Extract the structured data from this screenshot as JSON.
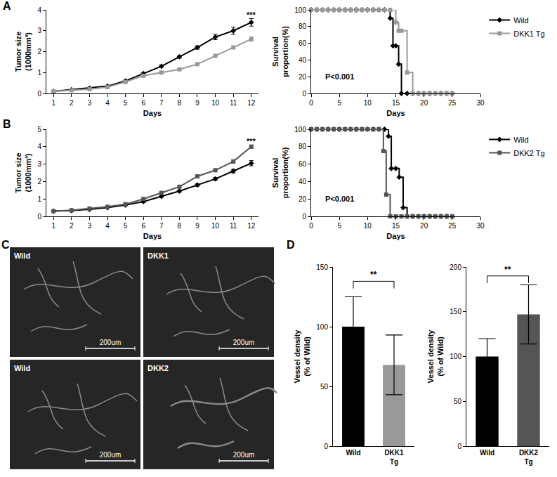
{
  "panel_labels": [
    "A",
    "B",
    "C",
    "D"
  ],
  "chart_data": [
    {
      "type": "line",
      "x_label": "Days",
      "y_label": "Tumor size\n(1000mm³)",
      "x": [
        1,
        2,
        3,
        4,
        5,
        6,
        7,
        8,
        9,
        10,
        11,
        12
      ],
      "xlim": [
        0.6,
        12.4
      ],
      "xticks": [
        1,
        2,
        3,
        4,
        5,
        6,
        7,
        8,
        9,
        10,
        11,
        12
      ],
      "ylim": [
        0,
        4
      ],
      "yticks": [
        0,
        1,
        2,
        3,
        4
      ],
      "series": [
        {
          "name": "Wild",
          "color": "#000000",
          "marker": "diamond",
          "values": [
            0.1,
            0.18,
            0.25,
            0.35,
            0.6,
            0.95,
            1.3,
            1.75,
            2.2,
            2.7,
            3.0,
            3.4
          ],
          "errors": [
            0.02,
            0.02,
            0.03,
            0.03,
            0.04,
            0.05,
            0.05,
            0.06,
            0.08,
            0.13,
            0.17,
            0.18
          ]
        },
        {
          "name": "DKK1 Tg",
          "color": "#999999",
          "marker": "square",
          "values": [
            0.1,
            0.15,
            0.2,
            0.3,
            0.55,
            0.85,
            1.0,
            1.15,
            1.4,
            1.8,
            2.2,
            2.6
          ],
          "errors": [
            0.02,
            0.02,
            0.02,
            0.03,
            0.03,
            0.04,
            0.04,
            0.04,
            0.05,
            0.05,
            0.05,
            0.1
          ]
        }
      ],
      "annotations": [
        {
          "text": "***",
          "x": 12,
          "y": 3.75
        }
      ]
    },
    {
      "type": "line",
      "x_label": "Days",
      "y_label": "Survival\nproportion(%)",
      "line_style": "step",
      "legend": "right",
      "xlim": [
        0,
        30
      ],
      "xticks": [
        0,
        5,
        10,
        15,
        20,
        25,
        30
      ],
      "ylim": [
        0,
        100
      ],
      "yticks": [
        0,
        20,
        40,
        60,
        80,
        100
      ],
      "series": [
        {
          "name": "Wild",
          "color": "#000000",
          "marker": "diamond",
          "x": [
            0,
            1,
            2,
            3,
            4,
            5,
            6,
            7,
            8,
            9,
            10,
            11,
            12,
            13,
            14,
            14.5,
            15,
            15.5,
            16,
            17,
            18,
            19,
            20,
            21,
            22,
            23,
            24,
            25
          ],
          "values": [
            100,
            100,
            100,
            100,
            100,
            100,
            100,
            100,
            100,
            100,
            100,
            100,
            100,
            100,
            90,
            57,
            57,
            35,
            0,
            0,
            0,
            0,
            0,
            0,
            0,
            0,
            0,
            0
          ]
        },
        {
          "name": "DKK1 Tg",
          "color": "#999999",
          "marker": "square",
          "x": [
            0,
            1,
            2,
            3,
            4,
            5,
            6,
            7,
            8,
            9,
            10,
            11,
            12,
            13,
            14,
            15,
            15.5,
            16,
            17,
            18,
            19,
            20,
            21,
            22,
            23,
            24,
            25
          ],
          "values": [
            100,
            100,
            100,
            100,
            100,
            100,
            100,
            100,
            100,
            100,
            100,
            100,
            100,
            100,
            100,
            85,
            75,
            75,
            25,
            0,
            0,
            0,
            0,
            0,
            0,
            0,
            0
          ]
        }
      ],
      "annotations": [
        {
          "text": "P<0.001",
          "x": 5,
          "y": 20
        }
      ]
    },
    {
      "type": "line",
      "x_label": "Days",
      "y_label": "Tumor size\n(1000mm³)",
      "x": [
        1,
        2,
        3,
        4,
        5,
        6,
        7,
        8,
        9,
        10,
        11,
        12
      ],
      "xlim": [
        0.6,
        12.4
      ],
      "xticks": [
        1,
        2,
        3,
        4,
        5,
        6,
        7,
        8,
        9,
        10,
        11,
        12
      ],
      "ylim": [
        0,
        5
      ],
      "yticks": [
        0,
        1,
        2,
        3,
        4,
        5
      ],
      "series": [
        {
          "name": "Wild",
          "color": "#000000",
          "marker": "diamond",
          "values": [
            0.3,
            0.33,
            0.4,
            0.5,
            0.65,
            0.85,
            1.15,
            1.45,
            1.8,
            2.15,
            2.6,
            3.05
          ],
          "errors": [
            0.02,
            0.02,
            0.03,
            0.03,
            0.04,
            0.04,
            0.05,
            0.06,
            0.07,
            0.08,
            0.1,
            0.15
          ]
        },
        {
          "name": "DKK2 Tg",
          "color": "#555555",
          "marker": "square",
          "values": [
            0.3,
            0.35,
            0.45,
            0.55,
            0.7,
            1.0,
            1.35,
            1.7,
            2.3,
            2.65,
            3.15,
            4.0
          ],
          "errors": [
            0.02,
            0.02,
            0.03,
            0.03,
            0.04,
            0.05,
            0.05,
            0.06,
            0.07,
            0.08,
            0.1,
            0.1
          ]
        }
      ],
      "annotations": [
        {
          "text": "***",
          "x": 12,
          "y": 4.3
        }
      ]
    },
    {
      "type": "line",
      "x_label": "Days",
      "y_label": "Survival\nproportion(%)",
      "line_style": "step",
      "legend": "right",
      "xlim": [
        0,
        30
      ],
      "xticks": [
        0,
        5,
        10,
        15,
        20,
        25,
        30
      ],
      "ylim": [
        0,
        100
      ],
      "yticks": [
        0,
        20,
        40,
        60,
        80,
        100
      ],
      "series": [
        {
          "name": "Wild",
          "color": "#000000",
          "marker": "diamond",
          "x": [
            0,
            1,
            2,
            3,
            4,
            5,
            6,
            7,
            8,
            9,
            10,
            11,
            12,
            13,
            13.7,
            14.2,
            15,
            15.6,
            16.3,
            17,
            18,
            19,
            20,
            21,
            22,
            23,
            24,
            25
          ],
          "values": [
            100,
            100,
            100,
            100,
            100,
            100,
            100,
            100,
            100,
            100,
            100,
            100,
            100,
            100,
            92,
            55,
            55,
            45,
            10,
            0,
            0,
            0,
            0,
            0,
            0,
            0,
            0,
            0
          ]
        },
        {
          "name": "DKK2 Tg",
          "color": "#555555",
          "marker": "square",
          "x": [
            0,
            1,
            2,
            3,
            4,
            5,
            6,
            7,
            8,
            9,
            10,
            11,
            12,
            12.8,
            13.3,
            14,
            15,
            16,
            17,
            18,
            19,
            20,
            21,
            22,
            23,
            24,
            25
          ],
          "values": [
            100,
            100,
            100,
            100,
            100,
            100,
            100,
            100,
            100,
            100,
            100,
            100,
            100,
            75,
            25,
            0,
            0,
            0,
            0,
            0,
            0,
            0,
            0,
            0,
            0,
            0,
            0
          ]
        }
      ],
      "annotations": [
        {
          "text": "P<0.001",
          "x": 5,
          "y": 20
        }
      ]
    },
    {
      "type": "bar",
      "y_label": "Vessel density\n(% of Wild)",
      "categories": [
        "Wild",
        "DKK1\nTg"
      ],
      "values": [
        100,
        68
      ],
      "errors": [
        25,
        25
      ],
      "colors": [
        "#000000",
        "#999999"
      ],
      "ylim": [
        0,
        150
      ],
      "yticks": [
        0,
        50,
        100,
        150
      ],
      "annotations": [
        {
          "text": "**",
          "x": 0.5,
          "y": 138
        }
      ]
    },
    {
      "type": "bar",
      "y_label": "Vessel density\n(% of Wild)",
      "categories": [
        "Wild",
        "DKK2\nTg"
      ],
      "values": [
        100,
        147
      ],
      "errors": [
        20,
        33
      ],
      "colors": [
        "#000000",
        "#555555"
      ],
      "ylim": [
        0,
        200
      ],
      "yticks": [
        0,
        50,
        100,
        150,
        200
      ],
      "annotations": [
        {
          "text": "**",
          "x": 0.5,
          "y": 190
        }
      ]
    }
  ],
  "images": [
    {
      "label": "Wild",
      "scale_bar": "200um"
    },
    {
      "label": "DKK1",
      "scale_bar": "200um"
    },
    {
      "label": "Wild",
      "scale_bar": "200um"
    },
    {
      "label": "DKK2",
      "scale_bar": "200um"
    }
  ]
}
